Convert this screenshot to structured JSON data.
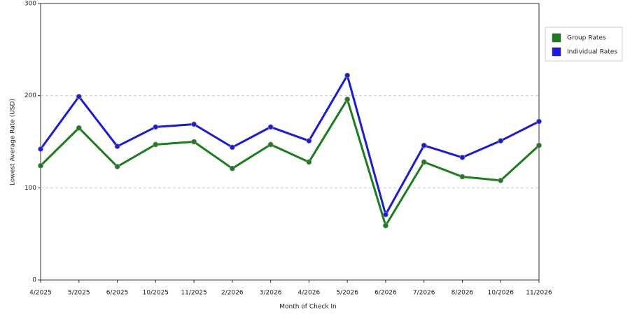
{
  "chart_data": {
    "type": "line",
    "x_label": "Month of Check In",
    "y_label": "Lowest Average Rate (USD)",
    "categories": [
      "4/2025",
      "5/2025",
      "6/2025",
      "10/2025",
      "11/2025",
      "2/2026",
      "3/2026",
      "4/2026",
      "5/2026",
      "6/2026",
      "7/2026",
      "8/2026",
      "10/2026",
      "11/2026"
    ],
    "series": [
      {
        "name": "Group Rates",
        "color": "#1a7f1a",
        "values": [
          124,
          165,
          123,
          147,
          150,
          121,
          147,
          128,
          196,
          59,
          128,
          112,
          108,
          146
        ]
      },
      {
        "name": "Individual Rates",
        "color": "#1a1adf",
        "values": [
          142,
          199,
          145,
          166,
          169,
          144,
          166,
          151,
          222,
          71,
          146,
          133,
          151,
          172
        ]
      }
    ],
    "ylim": [
      0,
      300
    ],
    "yticks": [
      0,
      100,
      200,
      300
    ],
    "grid": true,
    "legend": "right"
  }
}
